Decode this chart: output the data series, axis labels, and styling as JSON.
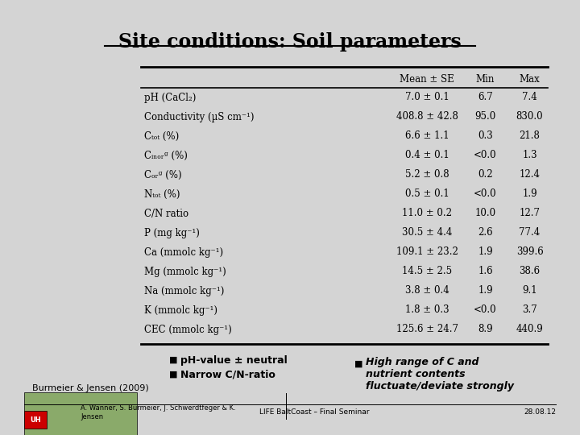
{
  "title": "Site conditions: Soil parameters",
  "bg_color": "#d4d4d4",
  "table_headers": [
    "",
    "Mean ± SE",
    "Min",
    "Max"
  ],
  "table_rows": [
    [
      "pH (CaCl₂)",
      "7.0 ± 0.1",
      "6.7",
      "7.4"
    ],
    [
      "Conductivity (µS cm⁻¹)",
      "408.8 ± 42.8",
      "95.0",
      "830.0"
    ],
    [
      "Cₜₒₜ (%)",
      "6.6 ± 1.1",
      "0.3",
      "21.8"
    ],
    [
      "Cᵢₙₒᵣᵍ (%)",
      "0.4 ± 0.1",
      "<0.0",
      "1.3"
    ],
    [
      "Cₒᵣᵍ (%)",
      "5.2 ± 0.8",
      "0.2",
      "12.4"
    ],
    [
      "Nₜₒₜ (%)",
      "0.5 ± 0.1",
      "<0.0",
      "1.9"
    ],
    [
      "C/N ratio",
      "11.0 ± 0.2",
      "10.0",
      "12.7"
    ],
    [
      "P (mg kg⁻¹)",
      "30.5 ± 4.4",
      "2.6",
      "77.4"
    ],
    [
      "Ca (mmolc kg⁻¹)",
      "109.1 ± 23.2",
      "1.9",
      "399.6"
    ],
    [
      "Mg (mmolc kg⁻¹)",
      "14.5 ± 2.5",
      "1.6",
      "38.6"
    ],
    [
      "Na (mmolc kg⁻¹)",
      "3.8 ± 0.4",
      "1.9",
      "9.1"
    ],
    [
      "K (mmolc kg⁻¹)",
      "1.8 ± 0.3",
      "<0.0",
      "3.7"
    ],
    [
      "CEC (mmolc kg⁻¹)",
      "125.6 ± 24.7",
      "8.9",
      "440.9"
    ]
  ],
  "bullet_left": [
    "pH-value ± neutral",
    "Narrow C/N-ratio"
  ],
  "bullet_right_bold": "High range of C and\nnutrient contents\nfluctuate/deviate strongly",
  "caption_left": "Burmeier & Jensen (2009)",
  "footer_left": "A. Wanner, S. Burmeier, J. Schwerdtfeger & K.\nJensen",
  "footer_center": "LIFE BaltCoast – Final Seminar",
  "footer_right": "28.08.12"
}
